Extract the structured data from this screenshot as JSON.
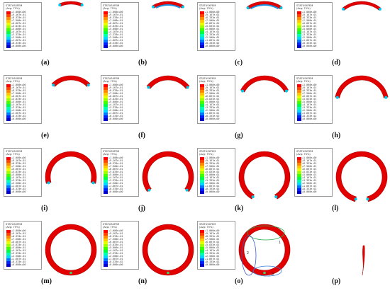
{
  "legend": {
    "title": "STATUSXFEM",
    "subtitle": "(Avg: 75%)",
    "values": [
      "+1.000e+00",
      "+9.167e-01",
      "+8.333e-01",
      "+7.500e-01",
      "+6.667e-01",
      "+5.833e-01",
      "+5.000e-01",
      "+4.167e-01",
      "+3.333e-01",
      "+2.500e-01",
      "+1.667e-01",
      "+8.333e-02",
      "+0.000e+00"
    ],
    "colors": [
      "#ff0000",
      "#ff4400",
      "#ff8a00",
      "#ffc800",
      "#e8ff00",
      "#9dff00",
      "#3fff00",
      "#00ff44",
      "#00ffb0",
      "#00d8ff",
      "#0078ff",
      "#0022ff",
      "#0000c8"
    ]
  },
  "panels": [
    {
      "label": "(a)"
    },
    {
      "label": "(b)"
    },
    {
      "label": "(c)"
    },
    {
      "label": "(d)"
    },
    {
      "label": "(e)"
    },
    {
      "label": "(f)"
    },
    {
      "label": "(g)"
    },
    {
      "label": "(h)"
    },
    {
      "label": "(i)"
    },
    {
      "label": "(j)"
    },
    {
      "label": "(k)"
    },
    {
      "label": "(l)"
    },
    {
      "label": "(m)"
    },
    {
      "label": "(n)"
    },
    {
      "label": "(o)"
    },
    {
      "label": "(p)"
    }
  ],
  "callouts": [
    "1",
    "2",
    "3"
  ]
}
